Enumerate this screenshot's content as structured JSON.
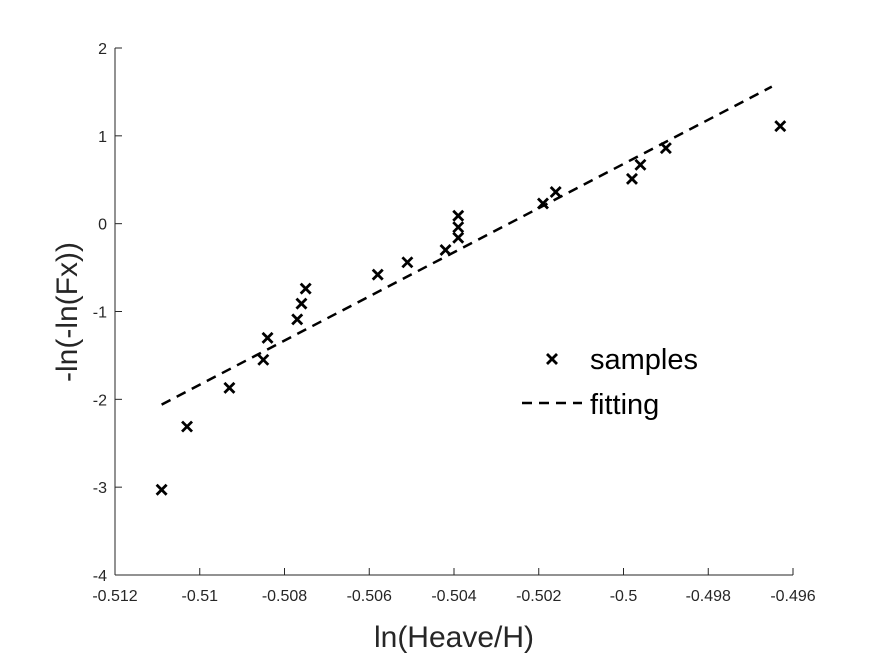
{
  "chart_data": {
    "type": "scatter",
    "title": "",
    "xlabel": "ln(Heave/H)",
    "ylabel": "-ln(-ln(Fx))",
    "xlim": [
      -0.512,
      -0.496
    ],
    "ylim": [
      -4,
      2
    ],
    "xticks": [
      -0.512,
      -0.51,
      -0.508,
      -0.506,
      -0.504,
      -0.502,
      -0.5,
      -0.498,
      -0.496
    ],
    "xtick_labels": [
      "-0.512",
      "-0.51",
      "-0.508",
      "-0.506",
      "-0.504",
      "-0.502",
      "-0.5",
      "-0.498",
      "-0.496"
    ],
    "yticks": [
      2,
      1,
      0,
      -1,
      -2,
      -3,
      -4
    ],
    "ytick_labels": [
      "2",
      "1",
      "0",
      "-1",
      "-2",
      "-3",
      "-4"
    ],
    "grid": false,
    "legend_position": "right",
    "series": [
      {
        "name": "samples",
        "marker": "x",
        "color": "#000000",
        "points": [
          [
            -0.5109,
            -3.03
          ],
          [
            -0.5103,
            -2.31
          ],
          [
            -0.5093,
            -1.87
          ],
          [
            -0.5085,
            -1.55
          ],
          [
            -0.5084,
            -1.3
          ],
          [
            -0.5077,
            -1.09
          ],
          [
            -0.5076,
            -0.91
          ],
          [
            -0.5075,
            -0.74
          ],
          [
            -0.5058,
            -0.58
          ],
          [
            -0.5051,
            -0.44
          ],
          [
            -0.5042,
            -0.3
          ],
          [
            -0.5039,
            -0.16
          ],
          [
            -0.5039,
            -0.04
          ],
          [
            -0.5039,
            0.09
          ],
          [
            -0.5019,
            0.23
          ],
          [
            -0.5016,
            0.36
          ],
          [
            -0.4998,
            0.51
          ],
          [
            -0.4996,
            0.67
          ],
          [
            -0.499,
            0.86
          ],
          [
            -0.4963,
            1.11
          ]
        ]
      },
      {
        "name": "fitting",
        "style": "dashed",
        "color": "#000000",
        "points": [
          [
            -0.5109,
            -2.06
          ],
          [
            -0.4965,
            1.56
          ]
        ]
      }
    ]
  }
}
